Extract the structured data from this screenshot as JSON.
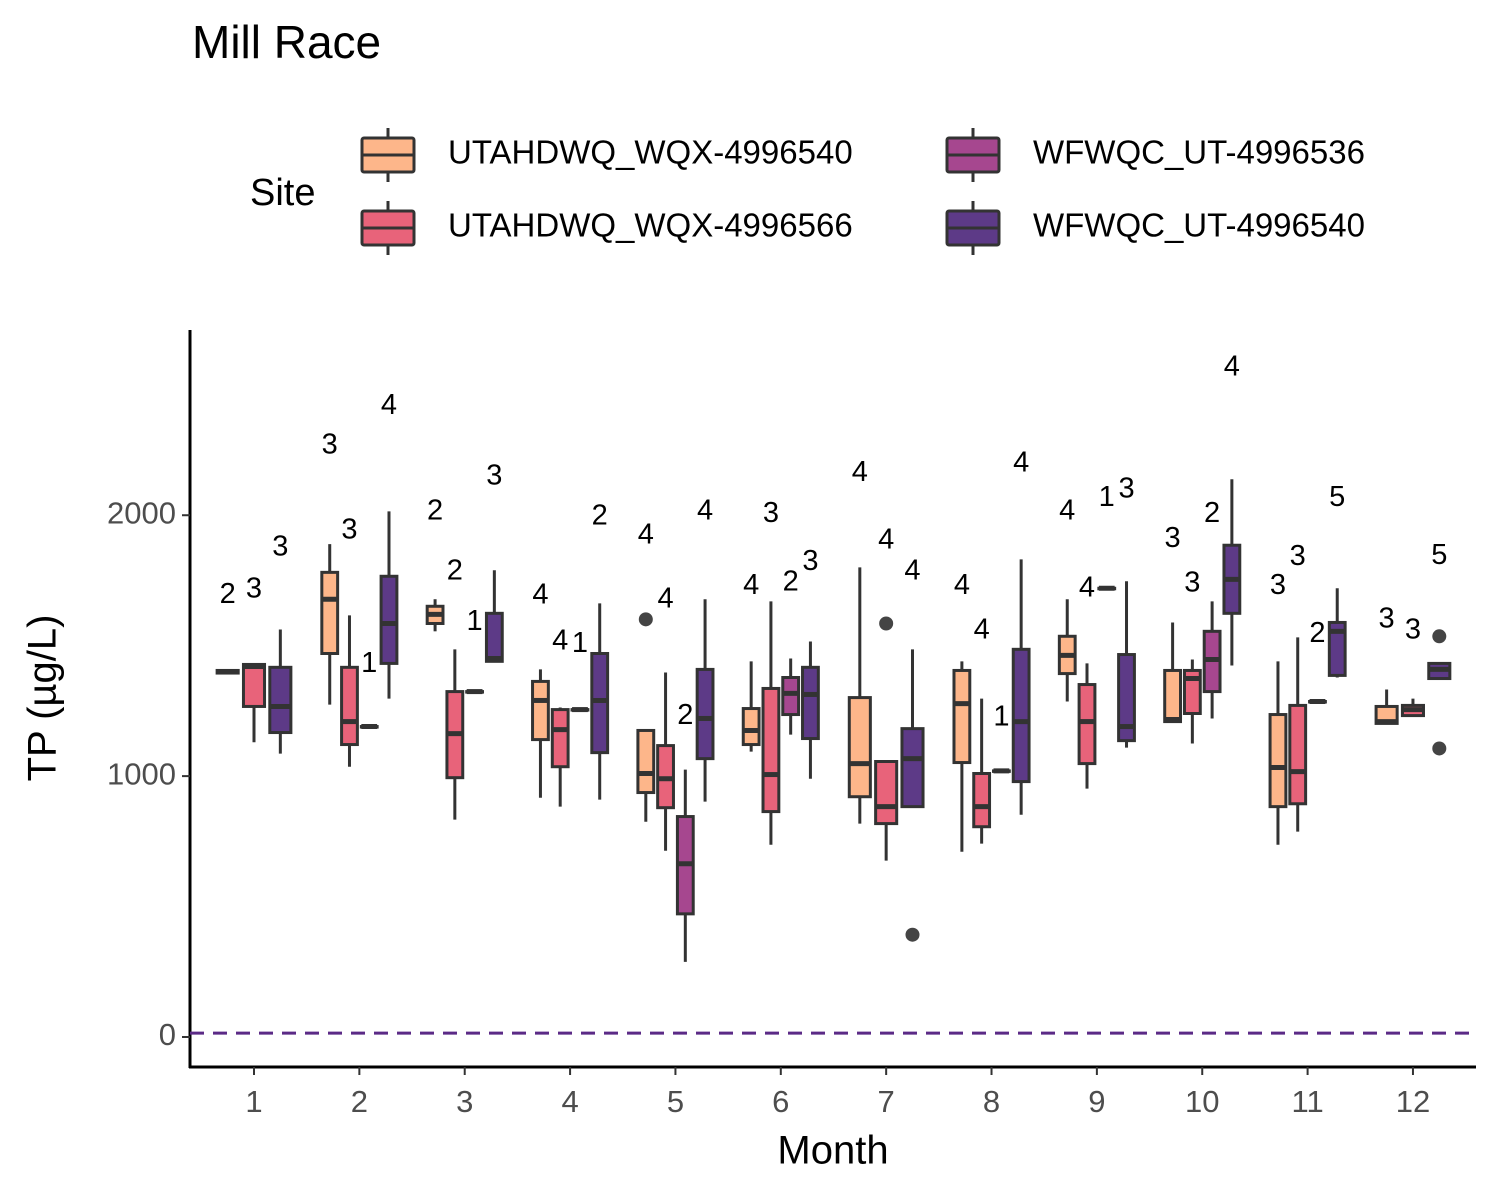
{
  "chart_data": {
    "type": "box",
    "title": "Mill Race",
    "x_label": "Month",
    "y_label": "TP (µg/L)",
    "legend_title": "Site",
    "categories": [
      "1",
      "2",
      "3",
      "4",
      "5",
      "6",
      "7",
      "8",
      "9",
      "10",
      "11",
      "12"
    ],
    "ylim": [
      -115,
      2710
    ],
    "yticks": [
      0,
      1000,
      2000
    ],
    "hline": {
      "value": 15,
      "color": "#5b2a86"
    },
    "series": [
      {
        "name": "UTAHDWQ_WQX-4996540",
        "color": "#fdb68a",
        "values": [
          {
            "min": 1395,
            "q1": 1395,
            "median": 1400,
            "q3": 1405,
            "max": 1410,
            "n": 2,
            "outliers": []
          },
          {
            "min": 1274,
            "q1": 1470,
            "median": 1678,
            "q3": 1781,
            "max": 1889,
            "n": 3,
            "outliers": []
          },
          {
            "min": 1555,
            "q1": 1585,
            "median": 1620,
            "q3": 1651,
            "max": 1678,
            "n": 2,
            "outliers": []
          },
          {
            "min": 917,
            "q1": 1140,
            "median": 1290,
            "q3": 1363,
            "max": 1409,
            "n": 4,
            "outliers": []
          },
          {
            "min": 825,
            "q1": 937,
            "median": 1010,
            "q3": 1175,
            "max": 1175,
            "n": 4,
            "outliers": [
              1601
            ]
          },
          {
            "min": 1094,
            "q1": 1121,
            "median": 1175,
            "q3": 1259,
            "max": 1440,
            "n": 4,
            "outliers": []
          },
          {
            "min": 818,
            "q1": 921,
            "median": 1048,
            "q3": 1301,
            "max": 1800,
            "n": 4,
            "outliers": []
          },
          {
            "min": 710,
            "q1": 1052,
            "median": 1278,
            "q3": 1405,
            "max": 1440,
            "n": 4,
            "outliers": []
          },
          {
            "min": 1286,
            "q1": 1393,
            "median": 1463,
            "q3": 1536,
            "max": 1678,
            "n": 4,
            "outliers": []
          },
          {
            "min": 1209,
            "q1": 1209,
            "median": 1217,
            "q3": 1405,
            "max": 1589,
            "n": 3,
            "outliers": []
          },
          {
            "min": 737,
            "q1": 883,
            "median": 1033,
            "q3": 1236,
            "max": 1440,
            "n": 3,
            "outliers": []
          },
          {
            "min": 1202,
            "q1": 1202,
            "median": 1209,
            "q3": 1267,
            "max": 1332,
            "n": 3,
            "outliers": []
          }
        ]
      },
      {
        "name": "UTAHDWQ_WQX-4996566",
        "color": "#e8637a",
        "values": [
          {
            "min": 1130,
            "q1": 1267,
            "median": 1420,
            "q3": 1428,
            "max": 1428,
            "n": 3,
            "outliers": []
          },
          {
            "min": 1036,
            "q1": 1121,
            "median": 1209,
            "q3": 1417,
            "max": 1616,
            "n": 3,
            "outliers": []
          },
          {
            "min": 833,
            "q1": 994,
            "median": 1163,
            "q3": 1324,
            "max": 1486,
            "n": 2,
            "outliers": []
          },
          {
            "min": 883,
            "q1": 1036,
            "median": 1178,
            "q3": 1255,
            "max": 1263,
            "n": 4,
            "outliers": []
          },
          {
            "min": 714,
            "q1": 879,
            "median": 990,
            "q3": 1117,
            "max": 1397,
            "n": 4,
            "outliers": []
          },
          {
            "min": 737,
            "q1": 864,
            "median": 1006,
            "q3": 1336,
            "max": 1670,
            "n": 3,
            "outliers": []
          },
          {
            "min": 676,
            "q1": 818,
            "median": 883,
            "q3": 1056,
            "max": 1056,
            "n": 4,
            "outliers": [
              1585
            ]
          },
          {
            "min": 741,
            "q1": 806,
            "median": 883,
            "q3": 1010,
            "max": 1297,
            "n": 4,
            "outliers": []
          },
          {
            "min": 952,
            "q1": 1048,
            "median": 1209,
            "q3": 1351,
            "max": 1432,
            "n": 4,
            "outliers": []
          },
          {
            "min": 1125,
            "q1": 1240,
            "median": 1374,
            "q3": 1405,
            "max": 1447,
            "n": 3,
            "outliers": []
          },
          {
            "min": 787,
            "q1": 894,
            "median": 1017,
            "q3": 1271,
            "max": 1532,
            "n": 3,
            "outliers": []
          },
          {
            "min": 1232,
            "q1": 1232,
            "median": 1255,
            "q3": 1271,
            "max": 1297,
            "n": 3,
            "outliers": []
          }
        ]
      },
      {
        "name": "WFWQC_UT-4996536",
        "color": "#a6478f",
        "values": [
          null,
          {
            "min": 1190,
            "q1": 1190,
            "median": 1190,
            "q3": 1190,
            "max": 1190,
            "n": 1,
            "outliers": []
          },
          {
            "min": 1324,
            "q1": 1324,
            "median": 1324,
            "q3": 1324,
            "max": 1324,
            "n": 1,
            "outliers": []
          },
          {
            "min": 1255,
            "q1": 1255,
            "median": 1255,
            "q3": 1255,
            "max": 1255,
            "n": 1,
            "outliers": []
          },
          {
            "min": 288,
            "q1": 472,
            "median": 664,
            "q3": 845,
            "max": 1025,
            "n": 2,
            "outliers": []
          },
          {
            "min": 1159,
            "q1": 1236,
            "median": 1317,
            "q3": 1378,
            "max": 1451,
            "n": 2,
            "outliers": []
          },
          null,
          {
            "min": 1020,
            "q1": 1020,
            "median": 1020,
            "q3": 1020,
            "max": 1020,
            "n": 1,
            "outliers": []
          },
          {
            "min": 1720,
            "q1": 1720,
            "median": 1720,
            "q3": 1720,
            "max": 1720,
            "n": 1,
            "outliers": []
          },
          {
            "min": 1221,
            "q1": 1324,
            "median": 1447,
            "q3": 1555,
            "max": 1670,
            "n": 2,
            "outliers": []
          },
          {
            "min": 1286,
            "q1": 1286,
            "median": 1286,
            "q3": 1286,
            "max": 1286,
            "n": 2,
            "outliers": []
          },
          null
        ]
      },
      {
        "name": "WFWQC_UT-4996540",
        "color": "#5d3a87",
        "values": [
          {
            "min": 1086,
            "q1": 1167,
            "median": 1267,
            "q3": 1417,
            "max": 1562,
            "n": 3,
            "outliers": []
          },
          {
            "min": 1297,
            "q1": 1432,
            "median": 1585,
            "q3": 1766,
            "max": 2015,
            "n": 4,
            "outliers": []
          },
          {
            "min": 1440,
            "q1": 1440,
            "median": 1451,
            "q3": 1624,
            "max": 1789,
            "n": 3,
            "outliers": []
          },
          {
            "min": 910,
            "q1": 1090,
            "median": 1290,
            "q3": 1470,
            "max": 1662,
            "n": 2,
            "outliers": []
          },
          {
            "min": 902,
            "q1": 1067,
            "median": 1221,
            "q3": 1409,
            "max": 1678,
            "n": 4,
            "outliers": []
          },
          {
            "min": 990,
            "q1": 1144,
            "median": 1313,
            "q3": 1417,
            "max": 1516,
            "n": 3,
            "outliers": []
          },
          {
            "min": 883,
            "q1": 883,
            "median": 1067,
            "q3": 1182,
            "max": 1486,
            "n": 4,
            "outliers": [
              392
            ]
          },
          {
            "min": 852,
            "q1": 979,
            "median": 1209,
            "q3": 1486,
            "max": 1831,
            "n": 4,
            "outliers": []
          },
          {
            "min": 1109,
            "q1": 1136,
            "median": 1190,
            "q3": 1466,
            "max": 1747,
            "n": 3,
            "outliers": []
          },
          {
            "min": 1424,
            "q1": 1624,
            "median": 1754,
            "q3": 1885,
            "max": 2138,
            "n": 4,
            "outliers": []
          },
          {
            "min": 1378,
            "q1": 1386,
            "median": 1555,
            "q3": 1589,
            "max": 1720,
            "n": 5,
            "outliers": []
          },
          {
            "min": 1374,
            "q1": 1374,
            "median": 1409,
            "q3": 1432,
            "max": 1432,
            "n": 5,
            "outliers": [
              1536,
              1106
            ]
          }
        ]
      }
    ]
  }
}
